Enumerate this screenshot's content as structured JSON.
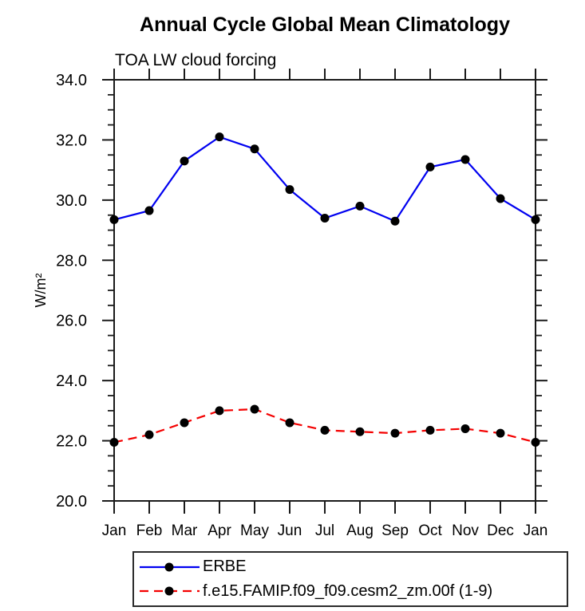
{
  "chart_data": {
    "type": "line",
    "title": "Annual Cycle Global Mean Climatology",
    "subtitle": "TOA LW cloud forcing",
    "ylabel": "W/m²",
    "xlabel": "",
    "categories": [
      "Jan",
      "Feb",
      "Mar",
      "Apr",
      "May",
      "Jun",
      "Jul",
      "Aug",
      "Sep",
      "Oct",
      "Nov",
      "Dec",
      "Jan"
    ],
    "ylim": [
      20.0,
      34.0
    ],
    "ytick_major_interval": 2.0,
    "ytick_minor_interval": 0.5,
    "ytick_labels": [
      "20.0",
      "22.0",
      "24.0",
      "26.0",
      "28.0",
      "30.0",
      "32.0",
      "34.0"
    ],
    "grid": false,
    "legend_position": "bottom",
    "colors": {
      "axis": "#1a1a1a",
      "marker": "#000000",
      "series1": "#0000f0",
      "series2": "#f40000"
    },
    "series": [
      {
        "name": "ERBE",
        "color": "#0000f0",
        "line_style": "solid",
        "marker": "filled-circle",
        "values": [
          29.35,
          29.65,
          31.3,
          32.1,
          31.7,
          30.35,
          29.4,
          29.8,
          29.3,
          31.1,
          31.35,
          30.05,
          29.35
        ]
      },
      {
        "name": "f.e15.FAMIP.f09_f09.cesm2_zm.00f (1-9)",
        "color": "#f40000",
        "line_style": "dashed",
        "marker": "filled-circle",
        "values": [
          21.95,
          22.2,
          22.6,
          23.0,
          23.05,
          22.6,
          22.35,
          22.3,
          22.25,
          22.35,
          22.4,
          22.25,
          21.95
        ]
      }
    ]
  }
}
